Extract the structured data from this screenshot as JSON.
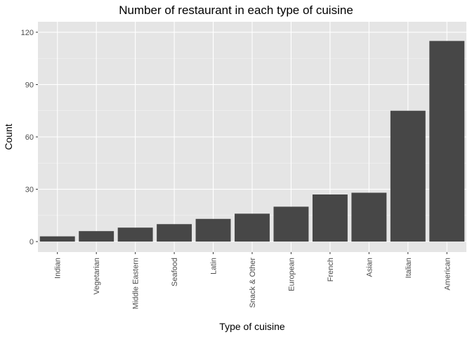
{
  "chart_data": {
    "type": "bar",
    "title": "Number of restaurant in each type of cuisine",
    "xlabel": "Type of cuisine",
    "ylabel": "Count",
    "categories": [
      "Indian",
      "Vegetarian",
      "Middle Eastern",
      "Seafood",
      "Latin",
      "Snack & Other",
      "European",
      "French",
      "Asian",
      "Italian",
      "American"
    ],
    "values": [
      3,
      6,
      8,
      10,
      13,
      16,
      20,
      27,
      28,
      75,
      115
    ],
    "yticks": [
      0,
      30,
      60,
      90,
      120
    ],
    "ylim": [
      -6,
      126
    ],
    "grid": true,
    "colors": {
      "bar": "#474747",
      "panel": "#e5e5e5",
      "grid_major": "#ffffff",
      "tick": "#333333"
    }
  }
}
